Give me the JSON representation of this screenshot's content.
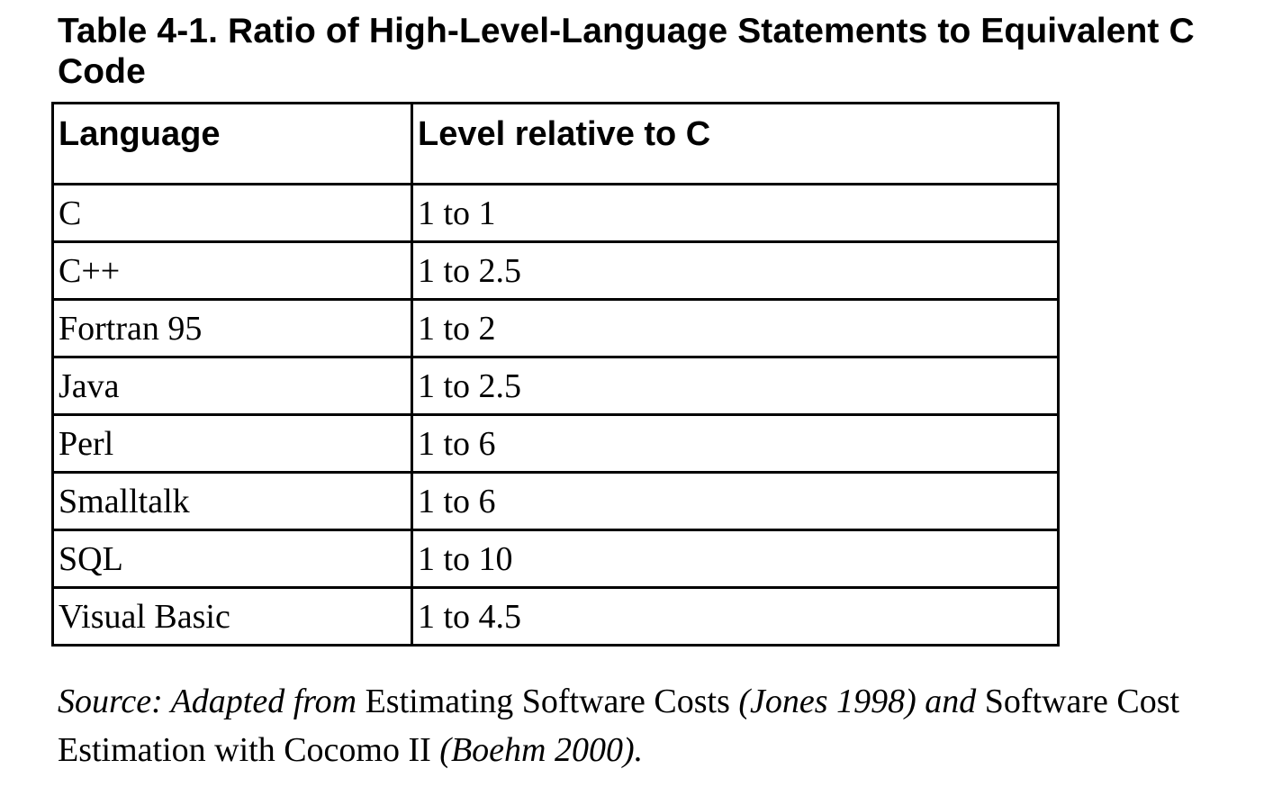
{
  "title": "Table 4-1. Ratio of High-Level-Language Statements to Equivalent C Code",
  "table": {
    "headers": [
      "Language",
      "Level relative to C"
    ],
    "rows": [
      [
        "C",
        "1 to 1"
      ],
      [
        "C++",
        "1 to 2.5"
      ],
      [
        "Fortran 95",
        "1 to 2"
      ],
      [
        "Java",
        "1 to 2.5"
      ],
      [
        "Perl",
        "1 to 6"
      ],
      [
        "Smalltalk",
        "1 to 6"
      ],
      [
        "SQL",
        "1 to 10"
      ],
      [
        "Visual Basic",
        "1 to 4.5"
      ]
    ]
  },
  "source": {
    "prefix": "Source: Adapted from ",
    "book1": "Estimating Software Costs",
    "cite1": " (Jones 1998) and ",
    "book2": "Software Cost Estimation with Cocomo II",
    "cite2": " (Boehm 2000)."
  }
}
